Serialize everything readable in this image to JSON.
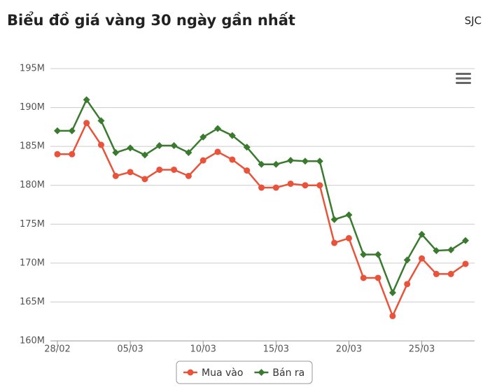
{
  "chart_data": {
    "type": "line",
    "title": "Biểu đồ giá vàng 30 ngày gần nhất",
    "subtitle": "SJC",
    "categories": [
      "28/02",
      null,
      null,
      null,
      null,
      "05/03",
      null,
      null,
      null,
      null,
      "10/03",
      null,
      null,
      null,
      null,
      "15/03",
      null,
      null,
      null,
      null,
      "20/03",
      null,
      null,
      null,
      null,
      "25/03",
      null,
      null,
      null
    ],
    "series": [
      {
        "name": "Mua vào",
        "color": "#e8533a",
        "marker": "circle",
        "values": [
          184000000,
          184000000,
          188000000,
          185200000,
          181200000,
          181700000,
          180800000,
          182000000,
          182000000,
          181200000,
          183200000,
          184300000,
          183300000,
          181900000,
          179700000,
          179700000,
          180200000,
          180000000,
          180000000,
          172600000,
          173200000,
          168100000,
          168100000,
          163200000,
          167300000,
          170600000,
          168600000,
          168600000,
          169900000
        ]
      },
      {
        "name": "Bán ra",
        "color": "#3a7a2e",
        "marker": "diamond",
        "values": [
          187000000,
          187000000,
          191000000,
          188300000,
          184200000,
          184800000,
          183900000,
          185100000,
          185100000,
          184200000,
          186200000,
          187300000,
          186400000,
          184900000,
          182700000,
          182700000,
          183200000,
          183100000,
          183100000,
          175600000,
          176200000,
          171100000,
          171100000,
          166200000,
          170400000,
          173700000,
          171600000,
          171700000,
          172900000
        ]
      }
    ],
    "ylim": [
      160000000,
      195000000
    ],
    "yticks": [
      {
        "value": 160000000,
        "label": "160M"
      },
      {
        "value": 165000000,
        "label": "165M"
      },
      {
        "value": 170000000,
        "label": "170M"
      },
      {
        "value": 175000000,
        "label": "175M"
      },
      {
        "value": 180000000,
        "label": "180M"
      },
      {
        "value": 185000000,
        "label": "185M"
      },
      {
        "value": 190000000,
        "label": "190M"
      },
      {
        "value": 195000000,
        "label": "195M"
      }
    ],
    "grid": true,
    "legend": "bottom"
  }
}
